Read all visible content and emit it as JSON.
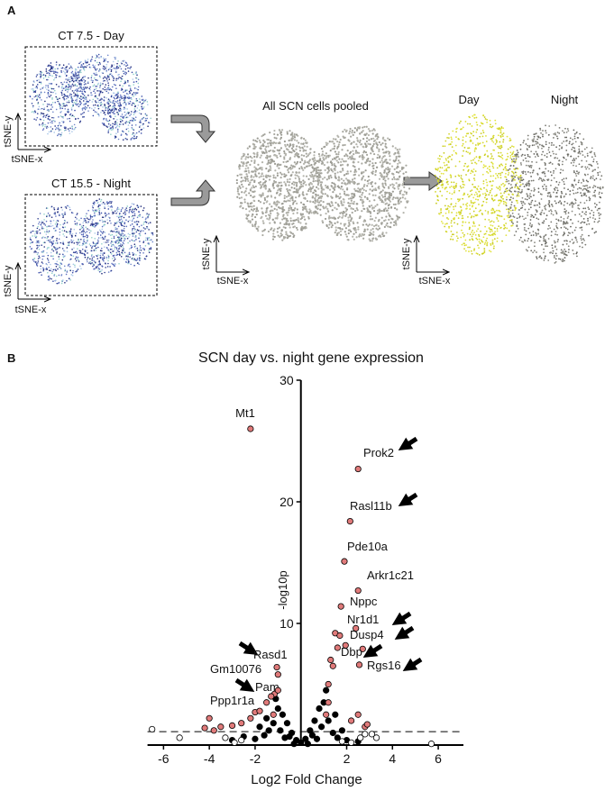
{
  "panel_a": {
    "label": "A",
    "plots": [
      {
        "title": "CT 7.5 - Day",
        "x_label": "tSNE-x",
        "y_label": "tSNE-y"
      },
      {
        "title": "CT 15.5 - Night",
        "x_label": "tSNE-x",
        "y_label": "tSNE-y"
      },
      {
        "title": "All SCN cells pooled",
        "x_label": "tSNE-x",
        "y_label": "tSNE-y"
      },
      {
        "x_label": "tSNE-x",
        "y_label": "tSNE-y"
      }
    ],
    "groups": [
      "Day",
      "Night"
    ]
  },
  "panel_b_label": "B",
  "chart_data": {
    "type": "scatter",
    "title": "SCN day vs. night gene expression",
    "x_label": "Log2 Fold Change",
    "y_label": "-log10p",
    "xlim": [
      -6.7,
      7.1
    ],
    "ylim": [
      0,
      30
    ],
    "xticks": [
      -6,
      -4,
      -2,
      2,
      4,
      6
    ],
    "yticks": [
      10,
      20,
      30
    ],
    "reference_line": 1.1,
    "series": [
      {
        "color": "#e07a7a",
        "x": [
          -2.2,
          2.5,
          2.15,
          1.9,
          2.5,
          1.75,
          2.4,
          2.7,
          1.95,
          2.55,
          -1.05,
          -1.0,
          -1.15,
          -2.0,
          1.2,
          1.4,
          1.6,
          1.5,
          1.7,
          1.3,
          -1.3,
          -1.5,
          -1.8,
          -2.2,
          -2.6,
          -3.0,
          -3.5,
          -4.2,
          -4.0,
          -3.8,
          2.2,
          2.8,
          2.5,
          2.9,
          1.2,
          1.1,
          -1.2,
          -1.0
        ],
        "y": [
          26,
          22.7,
          18.4,
          15.1,
          12.7,
          11.4,
          9.6,
          7.9,
          8.2,
          6.6,
          6.4,
          5.8,
          4.2,
          2.7,
          5,
          6.5,
          8,
          9.2,
          9,
          7,
          4,
          3.5,
          2.8,
          2.2,
          1.8,
          1.6,
          1.5,
          1.4,
          2.2,
          1.2,
          2,
          1.5,
          2.5,
          1.7,
          3.5,
          2.5,
          2.5,
          4.5
        ],
        "labels": [
          "Mt1",
          "Prok2",
          "Rasl11b",
          "Pde10a",
          "Arkr1c21",
          "Nppc",
          "Nr1d1",
          "Dusp4",
          "Dbp",
          "Rgs16",
          "Rasd1",
          "Gm10076",
          "Pam",
          "Ppp1r1a",
          null,
          null,
          null,
          null,
          null,
          null,
          null,
          null,
          null,
          null,
          null,
          null,
          null,
          null,
          null,
          null,
          null,
          null,
          null,
          null,
          null,
          null,
          null,
          null
        ]
      },
      {
        "color": "#000000",
        "x": [
          0,
          0.2,
          -0.2,
          0.4,
          -0.4,
          0.6,
          -0.6,
          0.8,
          -0.8,
          1,
          -1,
          0.9,
          -0.9,
          1.2,
          -1.2,
          1.4,
          -1.4,
          1.6,
          -1.6,
          -2,
          2,
          -2.5,
          2.5,
          -3,
          1.1,
          -1.1,
          0.7,
          -0.7,
          0.3,
          -0.3,
          1.5,
          -1.5,
          -1.8,
          1.8,
          0.5,
          -0.5
        ],
        "y": [
          0.2,
          0.5,
          0.4,
          1.2,
          1,
          2,
          1.8,
          3,
          2.5,
          3.5,
          3,
          1.5,
          1.2,
          2,
          1.8,
          1,
          1.2,
          0.6,
          0.8,
          0.5,
          0.4,
          0.7,
          0.3,
          0.4,
          4.5,
          3.8,
          0.5,
          0.6,
          0.1,
          0.1,
          2.5,
          2.2,
          1.5,
          1.2,
          0.8,
          0.7
        ]
      },
      {
        "color": "#ffffff",
        "x": [
          -6.5,
          -5.3,
          5.7,
          -2.6,
          2.8,
          3.1,
          3.3,
          2.6,
          -3.3,
          -2.9,
          1.8,
          2.2
        ],
        "y": [
          1.3,
          0.6,
          0.1,
          0.4,
          0.9,
          0.9,
          0.6,
          0.6,
          0.6,
          0.2,
          0.3,
          0.2
        ]
      }
    ]
  }
}
